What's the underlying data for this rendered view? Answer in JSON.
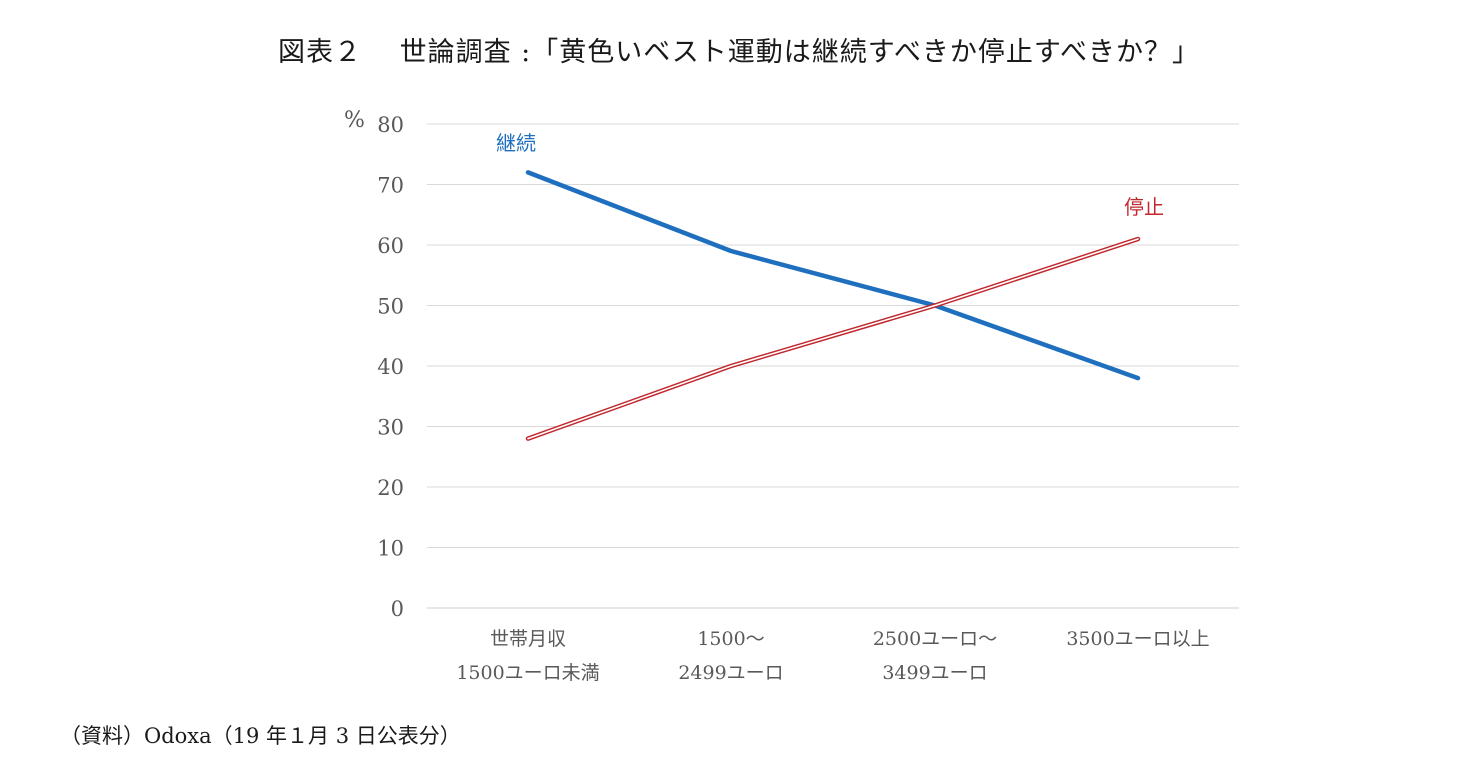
{
  "title": "図表２　 世論調査 :「黄色いベスト運動は継続すべきか停止すべきか？」",
  "source": "（資料）Odoxa（19 年１月 3 日公表分）",
  "chart_data": {
    "type": "line",
    "y_unit": "%",
    "ylim": [
      0,
      80
    ],
    "y_ticks": [
      0,
      10,
      20,
      30,
      40,
      50,
      60,
      70,
      80
    ],
    "grid": true,
    "legend": "inline labels near line ends",
    "categories": [
      [
        "世帯月収",
        "1500ユーロ未満"
      ],
      [
        "1500～",
        "2499ユーロ"
      ],
      [
        "2500ユーロ～",
        "3499ユーロ"
      ],
      [
        "3500ユーロ以上"
      ]
    ],
    "series": [
      {
        "name": "継続",
        "values": [
          72,
          59,
          50,
          38
        ],
        "color": "#1f6fbf",
        "style": "solid"
      },
      {
        "name": "停止",
        "values": [
          28,
          40,
          50,
          61
        ],
        "color": "#c0282d",
        "style": "double"
      }
    ]
  }
}
